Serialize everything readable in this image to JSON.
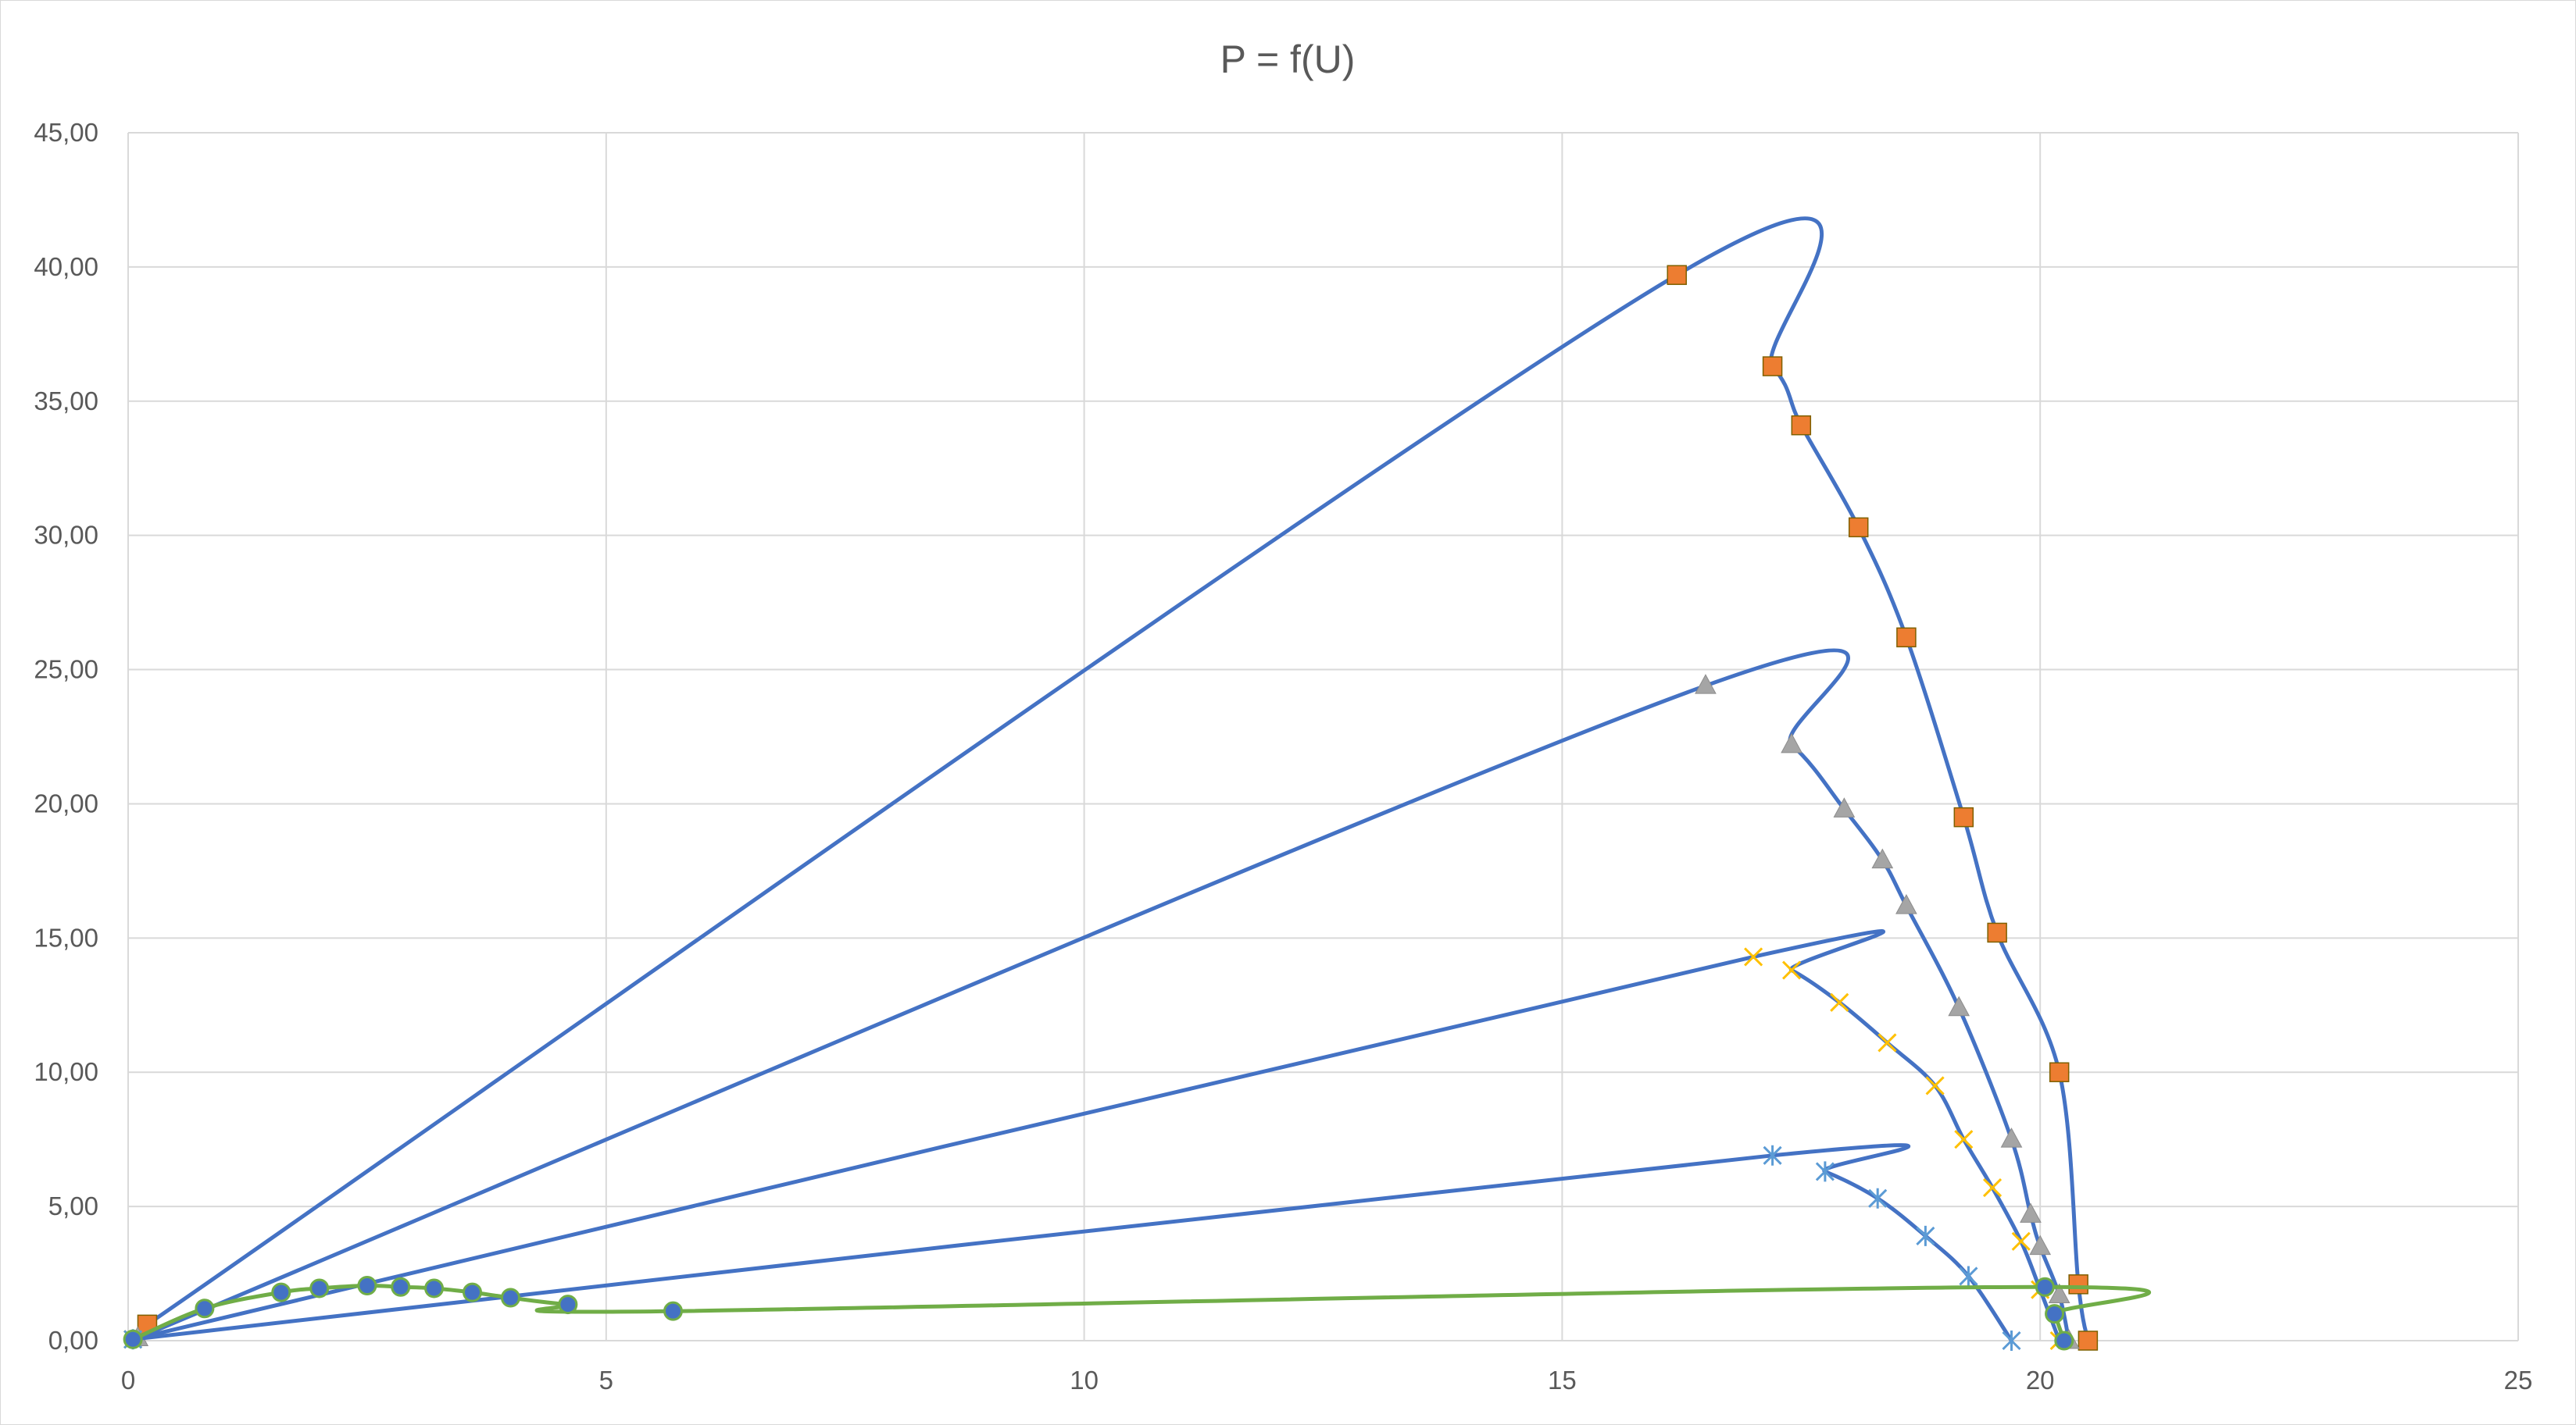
{
  "chart_data": {
    "type": "scatter",
    "title": "P = f(U)",
    "xlabel": "",
    "ylabel": "",
    "xlim": [
      0,
      25
    ],
    "ylim": [
      0,
      45
    ],
    "x_ticks": [
      0,
      5,
      10,
      15,
      20,
      25
    ],
    "y_ticks": [
      0,
      5,
      10,
      15,
      20,
      25,
      30,
      35,
      40,
      45
    ],
    "y_tick_labels": [
      "0,00",
      "5,00",
      "10,00",
      "15,00",
      "20,00",
      "25,00",
      "30,00",
      "35,00",
      "40,00",
      "45,00"
    ],
    "grid": true,
    "legend": "none",
    "series": [
      {
        "line_color": "#4472c4",
        "marker": "square",
        "marker_color": "#ed7d31",
        "points": [
          [
            0.2,
            0.6
          ],
          [
            16.2,
            39.7
          ],
          [
            17.2,
            36.3
          ],
          [
            17.5,
            34.1
          ],
          [
            18.1,
            30.3
          ],
          [
            18.6,
            26.2
          ],
          [
            19.2,
            19.5
          ],
          [
            19.55,
            15.2
          ],
          [
            20.2,
            10.0
          ],
          [
            20.4,
            2.1
          ],
          [
            20.5,
            0.0
          ]
        ]
      },
      {
        "line_color": "#4472c4",
        "marker": "triangle",
        "marker_color": "#a5a5a5",
        "points": [
          [
            0.1,
            0.1
          ],
          [
            16.5,
            24.4
          ],
          [
            17.4,
            22.2
          ],
          [
            17.95,
            19.8
          ],
          [
            18.35,
            17.9
          ],
          [
            18.6,
            16.2
          ],
          [
            19.15,
            12.4
          ],
          [
            19.7,
            7.5
          ],
          [
            19.9,
            4.7
          ],
          [
            20.0,
            3.5
          ],
          [
            20.2,
            1.7
          ],
          [
            20.3,
            0.0
          ]
        ]
      },
      {
        "line_color": "#4472c4",
        "marker": "x",
        "marker_color": "#ffc000",
        "points": [
          [
            0.05,
            0.05
          ],
          [
            17.0,
            14.3
          ],
          [
            17.4,
            13.8
          ],
          [
            17.9,
            12.6
          ],
          [
            18.4,
            11.1
          ],
          [
            18.9,
            9.5
          ],
          [
            19.2,
            7.5
          ],
          [
            19.5,
            5.7
          ],
          [
            19.8,
            3.7
          ],
          [
            20.0,
            1.9
          ],
          [
            20.2,
            0.0
          ]
        ]
      },
      {
        "line_color": "#4472c4",
        "marker": "star",
        "marker_color": "#5b9bd5",
        "points": [
          [
            0.05,
            0.05
          ],
          [
            17.2,
            6.9
          ],
          [
            17.75,
            6.3
          ],
          [
            18.3,
            5.3
          ],
          [
            18.8,
            3.9
          ],
          [
            19.25,
            2.4
          ],
          [
            19.7,
            0.0
          ]
        ]
      },
      {
        "line_color": "#70ad47",
        "marker": "circle",
        "marker_color": "#4472c4",
        "points": [
          [
            0.05,
            0.05
          ],
          [
            0.8,
            1.2
          ],
          [
            1.6,
            1.8
          ],
          [
            2.0,
            1.95
          ],
          [
            2.5,
            2.05
          ],
          [
            2.85,
            2.0
          ],
          [
            3.2,
            1.95
          ],
          [
            3.6,
            1.8
          ],
          [
            4.0,
            1.6
          ],
          [
            4.6,
            1.35
          ],
          [
            5.7,
            1.1
          ],
          [
            20.05,
            2.0
          ],
          [
            20.15,
            1.0
          ],
          [
            20.25,
            0.0
          ]
        ]
      }
    ]
  }
}
